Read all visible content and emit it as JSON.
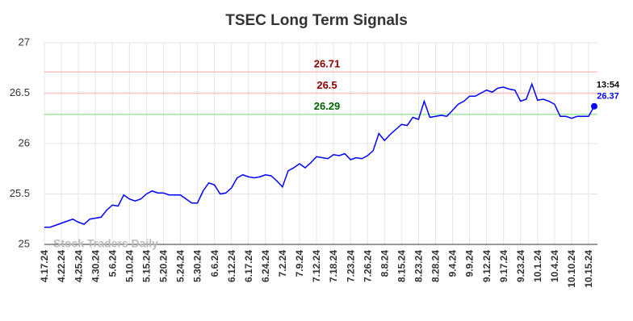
{
  "chart_data": {
    "type": "line",
    "title": "TSEC Long Term Signals",
    "categories": [
      "4.17.24",
      null,
      null,
      "4.22.24",
      null,
      null,
      "4.25.24",
      null,
      null,
      "4.30.24",
      null,
      null,
      "5.6.24",
      null,
      null,
      "5.10.24",
      null,
      null,
      "5.15.24",
      null,
      null,
      "5.20.24",
      null,
      null,
      "5.24.24",
      null,
      null,
      "5.30.24",
      null,
      null,
      "6.6.24",
      null,
      null,
      "6.12.24",
      null,
      null,
      "6.17.24",
      null,
      null,
      "6.24.24",
      null,
      null,
      "7.2.24",
      null,
      null,
      "7.9.24",
      null,
      null,
      "7.12.24",
      null,
      null,
      "7.18.24",
      null,
      null,
      "7.23.24",
      null,
      null,
      "7.26.24",
      null,
      null,
      "8.8.24",
      null,
      null,
      "8.15.24",
      null,
      null,
      "8.23.24",
      null,
      null,
      "8.28.24",
      null,
      null,
      "9.4.24",
      null,
      null,
      "9.9.24",
      null,
      null,
      "9.12.24",
      null,
      null,
      "9.17.24",
      null,
      null,
      "9.23.24",
      null,
      null,
      "10.1.24",
      null,
      null,
      "10.4.24",
      null,
      null,
      "10.10.24",
      null,
      null,
      "10.15.24",
      null
    ],
    "series": [
      {
        "color": "#0000ff",
        "values": [
          25.17,
          25.17,
          25.19,
          25.21,
          25.23,
          25.25,
          25.22,
          25.2,
          25.25,
          25.26,
          25.27,
          25.34,
          25.39,
          25.38,
          25.49,
          25.45,
          25.43,
          25.45,
          25.5,
          25.53,
          25.51,
          25.51,
          25.49,
          25.49,
          25.49,
          25.45,
          25.41,
          25.41,
          25.53,
          25.61,
          25.59,
          25.5,
          25.51,
          25.56,
          25.66,
          25.69,
          25.67,
          25.66,
          25.67,
          25.69,
          25.68,
          25.63,
          25.57,
          25.73,
          25.76,
          25.8,
          25.76,
          25.81,
          25.87,
          25.86,
          25.85,
          25.89,
          25.88,
          25.9,
          25.84,
          25.86,
          25.85,
          25.88,
          25.93,
          26.1,
          26.03,
          26.09,
          26.14,
          26.19,
          26.18,
          26.26,
          26.24,
          26.42,
          26.26,
          26.27,
          26.28,
          26.27,
          26.33,
          26.39,
          26.42,
          26.47,
          26.47,
          26.5,
          26.53,
          26.51,
          26.55,
          26.56,
          26.54,
          26.53,
          26.42,
          26.44,
          26.59,
          26.43,
          26.44,
          26.42,
          26.39,
          26.27,
          26.27,
          26.25,
          26.27,
          26.27,
          26.27,
          26.37
        ]
      }
    ],
    "hlines": [
      {
        "value": 26.71,
        "color": "#ffc0c0",
        "label_color": "#8b0000"
      },
      {
        "value": 26.5,
        "color": "#ffc0c0",
        "label_color": "#8b0000"
      },
      {
        "value": 26.29,
        "color": "#a0e8a0",
        "label_color": "#006400"
      }
    ],
    "last_time": "13:54",
    "watermark": "Stock Traders Daily",
    "ylim": [
      25,
      27
    ],
    "yticks": [
      25,
      25.5,
      26,
      26.5,
      27
    ],
    "grid": true
  }
}
